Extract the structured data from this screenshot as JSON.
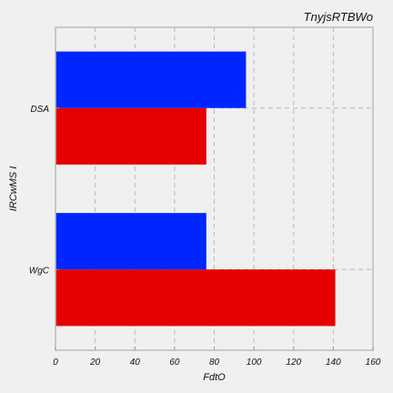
{
  "chart_data": {
    "type": "bar",
    "orientation": "horizontal",
    "title": "TnyjsRTBWo",
    "xlabel": "FdtO",
    "ylabel": "IRCwMS I",
    "categories": [
      "WgC",
      "DSA"
    ],
    "series": [
      {
        "values": [
          141,
          76
        ],
        "color": "#e60000"
      },
      {
        "values": [
          76,
          96
        ],
        "color": "#0026ff"
      }
    ],
    "xlim": [
      0,
      160
    ],
    "xticks": [
      0,
      20,
      40,
      60,
      80,
      100,
      120,
      140,
      160
    ],
    "grid": true,
    "legend": "none"
  }
}
